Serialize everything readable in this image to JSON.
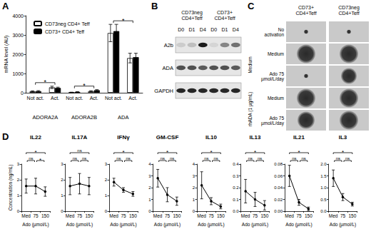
{
  "panel_labels": [
    "A",
    "B",
    "C",
    "D"
  ],
  "chart_data": [
    {
      "type": "bar",
      "y_label": "mRNA level (AU)",
      "categories": [
        "Not act.",
        "Act.",
        "Not act.",
        "Act.",
        "Not act.",
        "Act."
      ],
      "category_groups": [
        "ADORA2A",
        "ADORA2B",
        "ADA"
      ],
      "ylim": [
        0,
        4000
      ],
      "yticks": [
        0,
        1000,
        2000,
        3000,
        4000
      ],
      "legend": "top-left",
      "series": [
        {
          "name": "CD73neg CD4+ Teff",
          "color": "#ffffff",
          "values": [
            70,
            280,
            20,
            80,
            3100,
            1800
          ],
          "errors": [
            30,
            60,
            10,
            25,
            450,
            250
          ]
        },
        {
          "name": "CD73+ CD4+ Teff",
          "color": "#000000",
          "values": [
            80,
            250,
            40,
            130,
            3200,
            1850
          ],
          "errors": [
            30,
            40,
            15,
            30,
            350,
            200
          ]
        }
      ],
      "significance": [
        {
          "between": [
            0,
            1
          ],
          "label": "*"
        },
        {
          "between": [
            2,
            3
          ],
          "label": "*"
        },
        {
          "between": [
            4,
            5
          ],
          "label": "*"
        }
      ]
    },
    {
      "type": "line",
      "title": "IL22",
      "categories": [
        "Med",
        "75",
        "150"
      ],
      "x_label": "Ado (µmol/L)",
      "y_label": "Concentration (ng/mL)",
      "ylim": [
        0,
        3
      ],
      "yticks": [
        0,
        1,
        2,
        3
      ],
      "color": "#000000",
      "marker": "circle",
      "values": [
        1.6,
        1.6,
        1.25
      ],
      "errors": [
        0.45,
        0.5,
        0.3
      ],
      "significance": [
        {
          "between": [
            0,
            2
          ],
          "label": "*"
        },
        {
          "between": [
            0,
            1
          ],
          "label": "ns"
        },
        {
          "between": [
            1,
            2
          ],
          "label": "*"
        }
      ]
    },
    {
      "type": "line",
      "title": "IL17A",
      "categories": [
        "Med",
        "75",
        "150"
      ],
      "x_label": "Ado (µmol/L)",
      "ylim": [
        0,
        3
      ],
      "yticks": [
        0,
        1,
        2,
        3
      ],
      "color": "#000000",
      "marker": "circle",
      "values": [
        1.6,
        1.75,
        1.6
      ],
      "errors": [
        0.55,
        0.65,
        0.55
      ],
      "significance": [
        {
          "between": [
            0,
            2
          ],
          "label": "ns"
        },
        {
          "between": [
            0,
            1
          ],
          "label": "ns"
        },
        {
          "between": [
            1,
            2
          ],
          "label": "ns"
        }
      ]
    },
    {
      "type": "line",
      "title": "IFNγ",
      "categories": [
        "Med",
        "75",
        "150"
      ],
      "x_label": "Ado (µmol/L)",
      "ylim": [
        0,
        3
      ],
      "yticks": [
        0,
        1,
        2,
        3
      ],
      "color": "#000000",
      "marker": "circle",
      "values": [
        1.85,
        1.35,
        1.1
      ],
      "errors": [
        0.25,
        0.15,
        0.15
      ],
      "significance": [
        {
          "between": [
            0,
            2
          ],
          "label": "*"
        },
        {
          "between": [
            0,
            1
          ],
          "label": "ns"
        },
        {
          "between": [
            1,
            2
          ],
          "label": "ns"
        }
      ]
    },
    {
      "type": "line",
      "title": "GM-CSF",
      "categories": [
        "Med",
        "75",
        "150"
      ],
      "x_label": "Ado (µmol/L)",
      "ylim": [
        0,
        4
      ],
      "yticks": [
        0,
        1,
        2,
        3,
        4
      ],
      "color": "#000000",
      "marker": "circle",
      "values": [
        2.8,
        1.4,
        0.85
      ],
      "errors": [
        0.75,
        0.6,
        0.35
      ],
      "significance": [
        {
          "between": [
            0,
            2
          ],
          "label": "*"
        },
        {
          "between": [
            0,
            1
          ],
          "label": "ns"
        },
        {
          "between": [
            1,
            2
          ],
          "label": "ns"
        }
      ]
    },
    {
      "type": "line",
      "title": "IL10",
      "categories": [
        "Med",
        "75",
        "150"
      ],
      "x_label": "Ado (µmol/L)",
      "ylim": [
        0,
        4
      ],
      "yticks": [
        0,
        1,
        2,
        3,
        4
      ],
      "color": "#000000",
      "marker": "circle",
      "values": [
        2.2,
        0.85,
        0.4
      ],
      "errors": [
        1.15,
        0.3,
        0.2
      ],
      "significance": [
        {
          "between": [
            0,
            2
          ],
          "label": "*"
        },
        {
          "between": [
            0,
            1
          ],
          "label": "ns"
        },
        {
          "between": [
            1,
            2
          ],
          "label": "ns"
        }
      ]
    },
    {
      "type": "line",
      "title": "IL13",
      "categories": [
        "Med",
        "75",
        "150"
      ],
      "x_label": "Ado (µmol/L)",
      "ylim": [
        0,
        0.4
      ],
      "yticks": [
        {
          "value": 0,
          "label": "0.0"
        },
        0.1,
        0.2,
        0.3,
        0.4
      ],
      "color": "#000000",
      "marker": "circle",
      "values": [
        0.17,
        0.1,
        0.05
      ],
      "errors": [
        0.1,
        0.06,
        0.04
      ],
      "significance": [
        {
          "between": [
            0,
            2
          ],
          "label": "*"
        },
        {
          "between": [
            0,
            1
          ],
          "label": "ns"
        },
        {
          "between": [
            1,
            2
          ],
          "label": "ns"
        }
      ]
    },
    {
      "type": "line",
      "title": "IL21",
      "categories": [
        "Med",
        "75",
        "150"
      ],
      "x_label": "Ado (µmol/L)",
      "ylim": [
        0,
        0.08
      ],
      "yticks": [
        {
          "value": 0,
          "label": "0.00"
        },
        0.02,
        0.04,
        0.06,
        0.08
      ],
      "color": "#000000",
      "marker": "circle",
      "values": [
        0.06,
        0.015,
        0.004
      ],
      "errors": [
        0.018,
        0.005,
        0.003
      ],
      "significance": [
        {
          "between": [
            0,
            2
          ],
          "label": "*"
        },
        {
          "between": [
            0,
            1
          ],
          "label": "ns"
        },
        {
          "between": [
            1,
            2
          ],
          "label": "ns"
        }
      ]
    },
    {
      "type": "line",
      "title": "IL3",
      "categories": [
        "Med",
        "75",
        "150"
      ],
      "x_label": "Ado (µmol/L)",
      "ylim": [
        0,
        2
      ],
      "yticks": [
        {
          "value": 0,
          "label": "0.0"
        },
        0.5,
        {
          "value": 1,
          "label": "1.0"
        },
        1.5,
        {
          "value": 2,
          "label": "2.0"
        }
      ],
      "color": "#000000",
      "marker": "circle",
      "values": [
        1.4,
        0.6,
        0.3
      ],
      "errors": [
        0.35,
        0.15,
        0.08
      ],
      "significance": [
        {
          "between": [
            0,
            2
          ],
          "label": "*"
        },
        {
          "between": [
            0,
            1
          ],
          "label": "ns"
        },
        {
          "between": [
            1,
            2
          ],
          "label": "ns"
        }
      ]
    }
  ],
  "blot": {
    "groups": [
      "CD73neg CD4+Teff",
      "CD73+ CD4+Teff"
    ],
    "lanes": [
      "D0",
      "D1",
      "D4"
    ],
    "rows": [
      "A2b",
      "ADA",
      "GAPDH"
    ]
  },
  "colonies": {
    "columns": [
      "CD73+ CD4+Teff",
      "CD73neg CD4+Teff"
    ],
    "top_row": "No activation",
    "groups": [
      {
        "label": "Medium",
        "rows": [
          "Medium",
          "Ado 75 µmol/L/day"
        ]
      },
      {
        "label": "rhADA (1 µg/mL)",
        "rows": [
          "Medium",
          "Ado 75 µmol/L/day"
        ]
      }
    ]
  }
}
